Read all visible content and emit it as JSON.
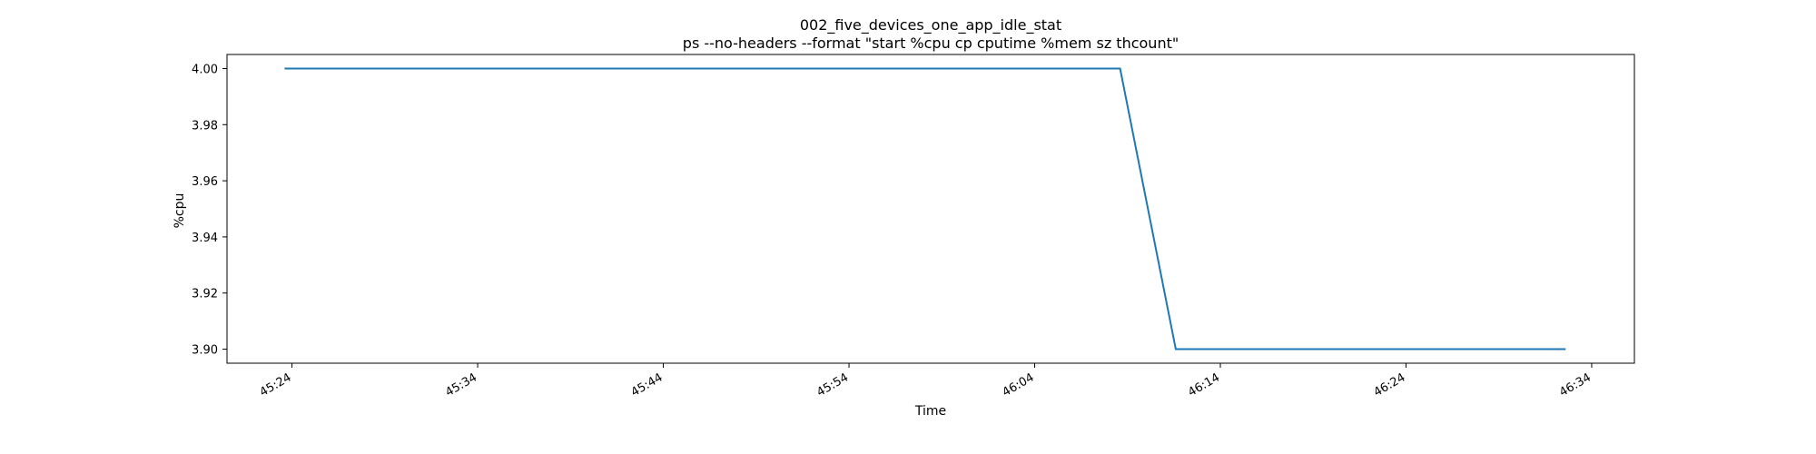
{
  "chart_data": {
    "type": "line",
    "title": "002_five_devices_one_app_idle_stat",
    "subtitle": "ps --no-headers --format \"start %cpu cp cputime %mem sz thcount\"",
    "xlabel": "Time",
    "ylabel": "%cpu",
    "xlim": [
      "45:20.5",
      "46:36.3"
    ],
    "ylim": [
      3.895,
      4.005
    ],
    "x_ticks": [
      "45:24",
      "45:34",
      "45:44",
      "45:54",
      "46:04",
      "46:14",
      "46:24",
      "46:34"
    ],
    "y_ticks": [
      "3.90",
      "3.92",
      "3.94",
      "3.96",
      "3.98",
      "4.00"
    ],
    "grid": false,
    "series": [
      {
        "color": "#1f77b4",
        "points": [
          {
            "x": "45:23.6",
            "y": 4.0
          },
          {
            "x": "46:08.6",
            "y": 4.0
          },
          {
            "x": "46:11.6",
            "y": 3.9
          },
          {
            "x": "46:32.6",
            "y": 3.9
          }
        ]
      }
    ]
  }
}
